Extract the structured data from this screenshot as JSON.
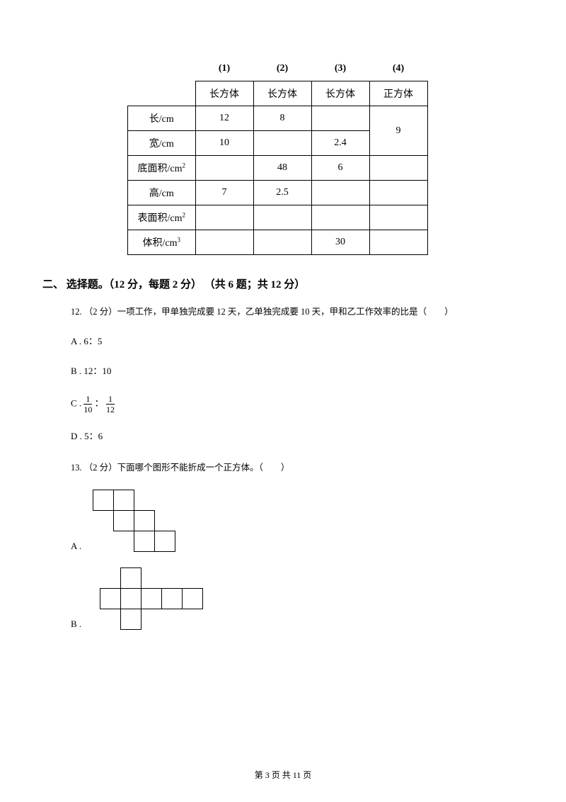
{
  "table": {
    "col_headers_top": [
      "",
      "(1)",
      "(2)",
      "(3)",
      "(4)"
    ],
    "col_headers": [
      "",
      "长方体",
      "长方体",
      "长方体",
      "正方体"
    ],
    "rows": [
      {
        "label": "长/cm",
        "c1": "12",
        "c2": "8",
        "c3": "",
        "c4_merged": "9"
      },
      {
        "label": "宽/cm",
        "c1": "10",
        "c2": "",
        "c3": "2.4"
      },
      {
        "label_html": "底面积/cm",
        "sup": "2",
        "c1": "",
        "c2": "48",
        "c3": "6",
        "c4": ""
      },
      {
        "label": "高/cm",
        "c1": "7",
        "c2": "2.5",
        "c3": "",
        "c4": ""
      },
      {
        "label_html": "表面积/cm",
        "sup": "2",
        "c1": "",
        "c2": "",
        "c3": "",
        "c4": ""
      },
      {
        "label_html": "体积/cm",
        "sup": "3",
        "c1": "",
        "c2": "",
        "c3": "30",
        "c4": ""
      }
    ]
  },
  "section2_title": "二、 选择题。（12 分，每题 2 分） （共 6 题；共 12 分）",
  "q12": {
    "text": "12. （2 分）一项工作，甲单独完成要 12 天，乙单独完成要 10 天，甲和乙工作效率的比是（　　）",
    "optA": "A . 6：5",
    "optB": "B . 12：10",
    "optC_prefix": "C . ",
    "optC_frac1_num": "1",
    "optC_frac1_den": "10",
    "optC_colon": " ：",
    "optC_frac2_num": "1",
    "optC_frac2_den": "12",
    "optD": "D . 5：6"
  },
  "q13": {
    "text": "13. （2 分）下面哪个图形不能折成一个正方体。（　　）",
    "optA": "A .",
    "optB": "B ."
  },
  "footer": "第 3 页 共 11 页"
}
